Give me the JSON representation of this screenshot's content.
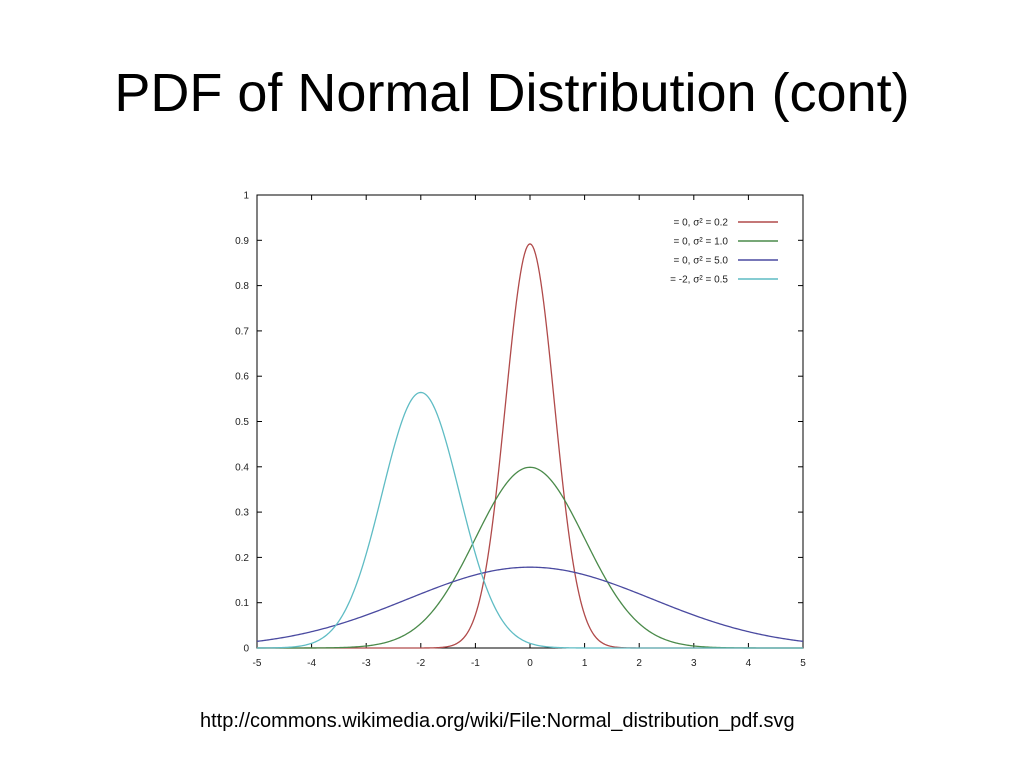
{
  "slide": {
    "title": "PDF of Normal Distribution (cont)",
    "source": "http://commons.wikimedia.org/wiki/File:Normal_distribution_pdf.svg"
  },
  "chart_data": {
    "type": "line",
    "title": "",
    "xlabel": "",
    "ylabel": "",
    "xlim": [
      -5,
      5
    ],
    "ylim": [
      0,
      1
    ],
    "x_ticks": [
      "-5",
      "-4",
      "-3",
      "-2",
      "-1",
      "0",
      "1",
      "2",
      "3",
      "4",
      "5"
    ],
    "y_ticks": [
      "0",
      "0.1",
      "0.2",
      "0.3",
      "0.4",
      "0.5",
      "0.6",
      "0.7",
      "0.8",
      "0.9",
      "1"
    ],
    "grid": false,
    "legend_position": "top-right",
    "series": [
      {
        "name": "= 0, σ² = 0.2",
        "color": "#b04a4a",
        "mu": 0,
        "variance": 0.2,
        "x": [
          -1.0,
          -0.8,
          -0.6,
          -0.4,
          -0.2,
          0.0,
          0.2,
          0.4,
          0.6,
          0.8,
          1.0,
          1.2,
          1.4
        ],
        "y": [
          0.007,
          0.036,
          0.123,
          0.403,
          0.804,
          0.886,
          0.804,
          0.403,
          0.123,
          0.036,
          0.007,
          0.002,
          0.0
        ]
      },
      {
        "name": "= 0, σ² = 1.0",
        "color": "#4a8a4a",
        "mu": 0,
        "variance": 1.0,
        "x": [
          -4,
          -3,
          -2.5,
          -2,
          -1.5,
          -1,
          -0.5,
          0,
          0.5,
          1,
          1.5,
          2,
          2.5,
          3,
          4
        ],
        "y": [
          0.0,
          0.004,
          0.018,
          0.054,
          0.13,
          0.242,
          0.352,
          0.399,
          0.352,
          0.242,
          0.13,
          0.054,
          0.018,
          0.004,
          0.0
        ]
      },
      {
        "name": "= 0, σ² = 5.0",
        "color": "#4a4aa0",
        "mu": 0,
        "variance": 5.0,
        "x": [
          -5,
          -4,
          -3,
          -2,
          -1,
          0,
          1,
          2,
          3,
          4,
          5
        ],
        "y": [
          0.015,
          0.036,
          0.072,
          0.12,
          0.161,
          0.178,
          0.161,
          0.12,
          0.072,
          0.036,
          0.015
        ]
      },
      {
        "name": "= -2, σ² = 0.5",
        "color": "#5fbcc4",
        "mu": -2,
        "variance": 0.5,
        "x": [
          -4,
          -3.5,
          -3,
          -2.5,
          -2,
          -1.5,
          -1,
          -0.5,
          0
        ],
        "y": [
          0.01,
          0.059,
          0.208,
          0.439,
          0.564,
          0.439,
          0.208,
          0.059,
          0.01
        ]
      }
    ]
  }
}
